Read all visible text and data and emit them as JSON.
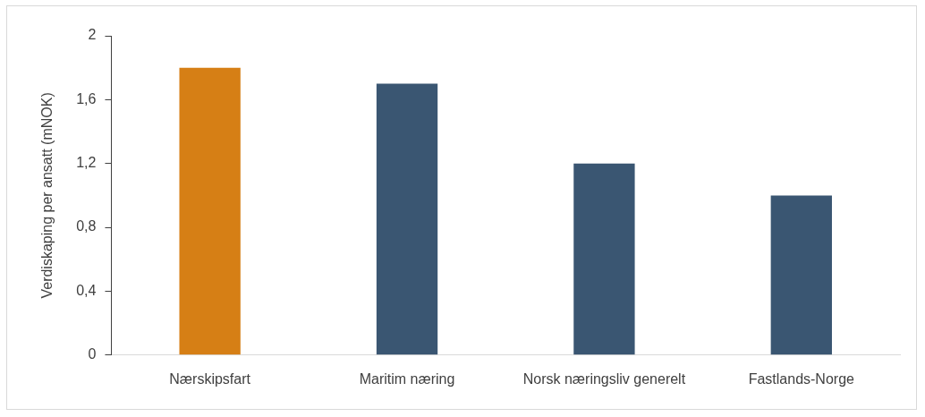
{
  "chart_data": {
    "type": "bar",
    "ylabel": "Verdiskaping per ansatt (mNOK)",
    "categories": [
      "Nærskipsfart",
      "Maritim næring",
      "Norsk næringsliv generelt",
      "Fastlands-Norge"
    ],
    "values": [
      1.8,
      1.7,
      1.2,
      1.0
    ],
    "colors": [
      "#d67f15",
      "#3a5672",
      "#3a5672",
      "#3a5672"
    ],
    "ylim": [
      0,
      2
    ],
    "yticks": [
      0,
      {
        "value": 0.4,
        "label": "0,4"
      },
      {
        "value": 0.8,
        "label": "0,8"
      },
      {
        "value": 1.2,
        "label": "1,2"
      },
      {
        "value": 1.6,
        "label": "1,6"
      },
      2
    ],
    "grid": false,
    "legend": false
  }
}
